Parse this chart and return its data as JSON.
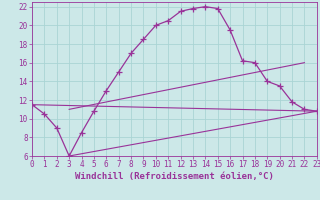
{
  "xlabel": "Windchill (Refroidissement éolien,°C)",
  "bg_color": "#cce8e8",
  "grid_color": "#aad4d4",
  "line_color": "#993399",
  "xlim": [
    0,
    23
  ],
  "ylim": [
    6,
    22.5
  ],
  "xtick_labels": [
    "0",
    "1",
    "2",
    "3",
    "4",
    "5",
    "6",
    "7",
    "8",
    "9",
    "10",
    "11",
    "12",
    "13",
    "14",
    "15",
    "16",
    "17",
    "18",
    "19",
    "20",
    "21",
    "22",
    "23"
  ],
  "ytick_labels": [
    "6",
    "8",
    "10",
    "12",
    "14",
    "16",
    "18",
    "20",
    "22"
  ],
  "ytick_vals": [
    6,
    8,
    10,
    12,
    14,
    16,
    18,
    20,
    22
  ],
  "curve1_x": [
    0,
    1,
    2,
    3,
    4,
    5,
    6,
    7,
    8,
    9,
    10,
    11,
    12,
    13,
    14,
    15,
    16,
    17,
    18,
    19,
    20,
    21,
    22,
    23
  ],
  "curve1_y": [
    11.5,
    10.5,
    9.0,
    6.0,
    8.5,
    10.8,
    13.0,
    15.0,
    17.0,
    18.5,
    20.0,
    20.5,
    21.5,
    21.8,
    22.0,
    21.8,
    19.5,
    16.2,
    16.0,
    14.0,
    13.5,
    11.8,
    11.0,
    10.8
  ],
  "line1_x": [
    0,
    23
  ],
  "line1_y": [
    11.5,
    10.8
  ],
  "line2_x": [
    3,
    23
  ],
  "line2_y": [
    6.0,
    10.8
  ],
  "line3_x": [
    3,
    22
  ],
  "line3_y": [
    11.0,
    16.0
  ],
  "font_size_label": 6.5,
  "font_size_tick": 5.5
}
